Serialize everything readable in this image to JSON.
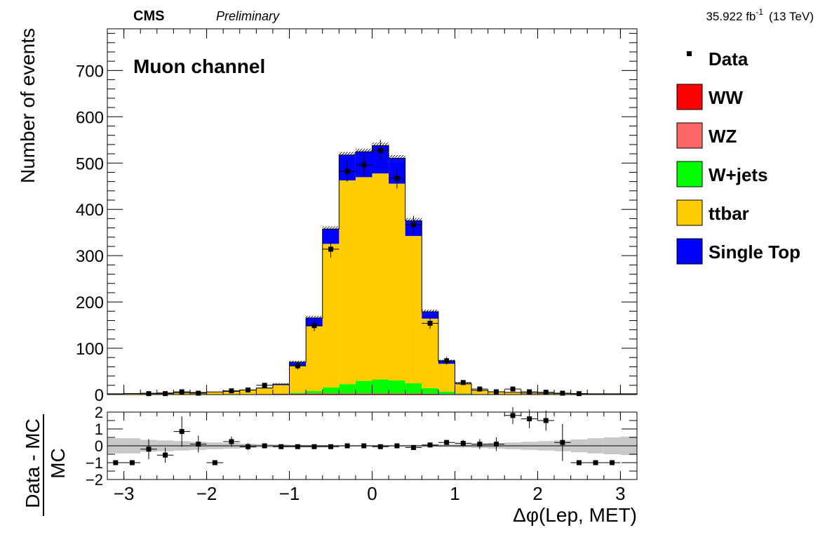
{
  "header": {
    "experiment": "CMS",
    "status": "Preliminary",
    "lumi": "35.922 fb",
    "lumi_exp": "-1",
    "energy": "(13 TeV)"
  },
  "chart_data": [
    {
      "type": "bar",
      "stacked": true,
      "annotation": "Muon channel",
      "xlabel": "Δφ(Lep, MET)",
      "ylabel": "Number of events",
      "xlim": [
        -3.2,
        3.2
      ],
      "ylim": [
        0,
        790
      ],
      "y_ticks": [
        "0",
        "100",
        "200",
        "300",
        "400",
        "500",
        "600",
        "700"
      ],
      "x_ticks": [
        "−3",
        "−2",
        "−1",
        "0",
        "1",
        "2",
        "3"
      ],
      "x_tick_values": [
        -3,
        -2,
        -1,
        0,
        1,
        2,
        3
      ],
      "y_tick_values": [
        0,
        100,
        200,
        300,
        400,
        500,
        600,
        700
      ],
      "bin_edges": [
        -3.2,
        -3.0,
        -2.8,
        -2.6,
        -2.4,
        -2.2,
        -2.0,
        -1.8,
        -1.6,
        -1.4,
        -1.2,
        -1.0,
        -0.8,
        -0.6,
        -0.4,
        -0.2,
        0.0,
        0.2,
        0.4,
        0.6,
        0.8,
        1.0,
        1.2,
        1.4,
        1.6,
        1.8,
        2.0,
        2.2,
        2.4,
        2.6,
        2.8,
        3.0,
        3.2
      ],
      "series": [
        {
          "name": "WW",
          "color": "#ff0000",
          "values": [
            0.2,
            0.2,
            0.3,
            0.3,
            0.3,
            0.4,
            0.5,
            0.6,
            0.8,
            1,
            1.5,
            1.5,
            2,
            2,
            2,
            2,
            2,
            2,
            2,
            1.5,
            1,
            1,
            0.8,
            0.6,
            0.5,
            0.4,
            0.3,
            0.3,
            0.3,
            0.2,
            0.2,
            0.2
          ]
        },
        {
          "name": "WZ",
          "color": "#ff6666",
          "values": [
            0.1,
            0.1,
            0.1,
            0.1,
            0.1,
            0.1,
            0.2,
            0.2,
            0.3,
            0.3,
            0.4,
            0.5,
            0.5,
            0.5,
            0.5,
            0.5,
            0.5,
            0.5,
            0.5,
            0.5,
            0.4,
            0.3,
            0.3,
            0.2,
            0.2,
            0.1,
            0.1,
            0.1,
            0.1,
            0.1,
            0.1,
            0.1
          ]
        },
        {
          "name": "W+jets",
          "color": "#00ff00",
          "values": [
            0,
            0,
            0,
            0,
            0,
            0,
            0,
            0,
            0,
            0,
            0.5,
            2,
            5,
            13,
            20,
            27,
            30,
            28,
            22,
            12,
            5,
            1,
            0,
            0,
            0,
            0,
            0,
            0,
            0,
            0,
            0,
            0
          ]
        },
        {
          "name": "ttbar",
          "color": "#ffcc00",
          "values": [
            1.5,
            2,
            2.5,
            3,
            3.5,
            4,
            5,
            6,
            8,
            12,
            18,
            58,
            140,
            310,
            440,
            440,
            445,
            425,
            318,
            150,
            60,
            20,
            8,
            5,
            4,
            3,
            2.5,
            2,
            1.5,
            1.5,
            1.5,
            1.5
          ]
        },
        {
          "name": "Single Top",
          "color": "#0000ff",
          "values": [
            0,
            0,
            0,
            0,
            0,
            0,
            0,
            0,
            0.5,
            1,
            2,
            8,
            18,
            32,
            55,
            55,
            60,
            55,
            33,
            15,
            6,
            1,
            0,
            0,
            0,
            0,
            0,
            0,
            0,
            0,
            0,
            0
          ]
        }
      ],
      "data": {
        "name": "Data",
        "x": [
          -2.7,
          -2.5,
          -2.3,
          -2.1,
          -1.7,
          -1.5,
          -1.3,
          -0.9,
          -0.7,
          -0.5,
          -0.3,
          -0.1,
          0.1,
          0.3,
          0.5,
          0.7,
          0.9,
          1.1,
          1.3,
          1.5,
          1.7,
          1.9,
          2.1,
          2.3,
          2.5
        ],
        "y": [
          2,
          2,
          6,
          3,
          8,
          10,
          20,
          62,
          149,
          314,
          482,
          496,
          527,
          467,
          367,
          154,
          73,
          26,
          12,
          6,
          12,
          6,
          5,
          3,
          2
        ],
        "err": [
          1.4,
          1.4,
          2.4,
          1.7,
          2.8,
          3.2,
          4.5,
          8,
          12,
          18,
          22,
          22,
          23,
          22,
          19,
          12,
          8.5,
          5,
          3.5,
          2.5,
          3.5,
          2.5,
          2.2,
          1.7,
          1.4
        ]
      },
      "legend_placement": "right of plot"
    },
    {
      "type": "scatter",
      "ylabel_top": "Data - MC",
      "ylabel_bottom": "MC",
      "xlim": [
        -3.2,
        3.2
      ],
      "ylim": [
        -2,
        2
      ],
      "y_ticks": [
        "2",
        "1",
        "0",
        "−1",
        "−2"
      ],
      "y_tick_values": [
        2,
        1,
        0,
        -1,
        -2
      ],
      "points": {
        "x": [
          -3.1,
          -2.9,
          -2.7,
          -2.5,
          -2.3,
          -2.1,
          -1.9,
          -1.7,
          -1.5,
          -1.3,
          -1.1,
          -0.9,
          -0.7,
          -0.5,
          -0.3,
          -0.1,
          0.1,
          0.3,
          0.5,
          0.7,
          0.9,
          1.1,
          1.3,
          1.5,
          1.7,
          1.9,
          2.1,
          2.3,
          2.5,
          2.7,
          2.9
        ],
        "y": [
          -1,
          -1,
          -0.2,
          -0.55,
          0.85,
          0.1,
          -1,
          0.25,
          -0.05,
          0.0,
          -0.05,
          -0.05,
          -0.05,
          -0.05,
          0.0,
          0.0,
          -0.05,
          0.0,
          -0.1,
          0.05,
          0.2,
          0.15,
          0.1,
          0.1,
          1.8,
          1.6,
          1.5,
          0.2,
          -1,
          -1,
          -1
        ],
        "err": [
          0,
          0,
          0.6,
          0.45,
          0.9,
          0.5,
          0,
          0.3,
          0.2,
          0.15,
          0.1,
          0.08,
          0.06,
          0.05,
          0.05,
          0.05,
          0.05,
          0.05,
          0.08,
          0.1,
          0.15,
          0.2,
          0.3,
          0.4,
          0.5,
          0.55,
          0.6,
          1.1,
          0,
          0,
          0
        ]
      },
      "uncertainty_band": [
        0.45,
        0.45,
        0.35,
        0.32,
        0.28,
        0.24,
        0.2,
        0.17,
        0.13,
        0.1,
        0.08,
        0.06,
        0.05,
        0.05,
        0.05,
        0.05,
        0.05,
        0.05,
        0.05,
        0.06,
        0.08,
        0.1,
        0.13,
        0.17,
        0.2,
        0.24,
        0.28,
        0.32,
        0.38,
        0.45,
        0.5,
        0.55
      ]
    }
  ]
}
